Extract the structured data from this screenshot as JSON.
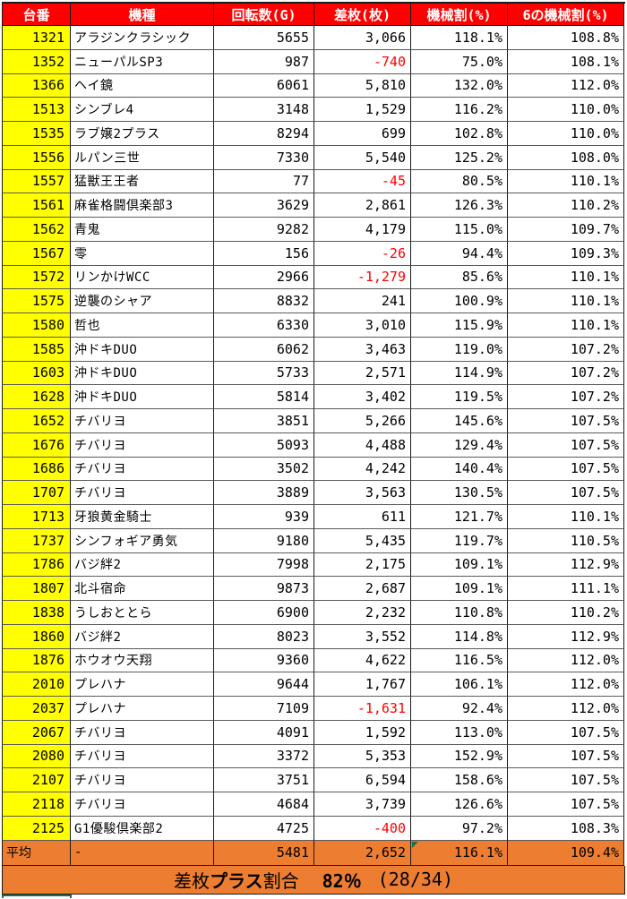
{
  "columns": [
    "台番",
    "機種",
    "回転数(G)",
    "差枚(枚)",
    "機械割(%)",
    "6の機械割(%)"
  ],
  "rows": [
    {
      "no": "1321",
      "name": "アラジンクラシック",
      "spins": "5655",
      "diff": "3,066",
      "rate": "118.1%",
      "rate6": "108.8%"
    },
    {
      "no": "1352",
      "name": "ニューパルSP3",
      "spins": "987",
      "diff": "-740",
      "rate": "75.0%",
      "rate6": "108.1%"
    },
    {
      "no": "1366",
      "name": "ヘイ鏡",
      "spins": "6061",
      "diff": "5,810",
      "rate": "132.0%",
      "rate6": "112.0%"
    },
    {
      "no": "1513",
      "name": "シンブレ4",
      "spins": "3148",
      "diff": "1,529",
      "rate": "116.2%",
      "rate6": "110.0%"
    },
    {
      "no": "1535",
      "name": "ラブ嬢2プラス",
      "spins": "8294",
      "diff": "699",
      "rate": "102.8%",
      "rate6": "110.0%"
    },
    {
      "no": "1556",
      "name": "ルパン三世",
      "spins": "7330",
      "diff": "5,540",
      "rate": "125.2%",
      "rate6": "108.0%"
    },
    {
      "no": "1557",
      "name": "猛獣王王者",
      "spins": "77",
      "diff": "-45",
      "rate": "80.5%",
      "rate6": "110.1%"
    },
    {
      "no": "1561",
      "name": "麻雀格闘倶楽部3",
      "spins": "3629",
      "diff": "2,861",
      "rate": "126.3%",
      "rate6": "110.2%"
    },
    {
      "no": "1562",
      "name": "青鬼",
      "spins": "9282",
      "diff": "4,179",
      "rate": "115.0%",
      "rate6": "109.7%"
    },
    {
      "no": "1567",
      "name": "零",
      "spins": "156",
      "diff": "-26",
      "rate": "94.4%",
      "rate6": "109.3%"
    },
    {
      "no": "1572",
      "name": "リンかけWCC",
      "spins": "2966",
      "diff": "-1,279",
      "rate": "85.6%",
      "rate6": "110.1%"
    },
    {
      "no": "1575",
      "name": "逆襲のシャア",
      "spins": "8832",
      "diff": "241",
      "rate": "100.9%",
      "rate6": "110.1%"
    },
    {
      "no": "1580",
      "name": "哲也",
      "spins": "6330",
      "diff": "3,010",
      "rate": "115.9%",
      "rate6": "110.1%"
    },
    {
      "no": "1585",
      "name": "沖ドキDUO",
      "spins": "6062",
      "diff": "3,463",
      "rate": "119.0%",
      "rate6": "107.2%"
    },
    {
      "no": "1603",
      "name": "沖ドキDUO",
      "spins": "5733",
      "diff": "2,571",
      "rate": "114.9%",
      "rate6": "107.2%"
    },
    {
      "no": "1628",
      "name": "沖ドキDUO",
      "spins": "5814",
      "diff": "3,402",
      "rate": "119.5%",
      "rate6": "107.2%"
    },
    {
      "no": "1652",
      "name": "チバリヨ",
      "spins": "3851",
      "diff": "5,266",
      "rate": "145.6%",
      "rate6": "107.5%"
    },
    {
      "no": "1676",
      "name": "チバリヨ",
      "spins": "5093",
      "diff": "4,488",
      "rate": "129.4%",
      "rate6": "107.5%"
    },
    {
      "no": "1686",
      "name": "チバリヨ",
      "spins": "3502",
      "diff": "4,242",
      "rate": "140.4%",
      "rate6": "107.5%"
    },
    {
      "no": "1707",
      "name": "チバリヨ",
      "spins": "3889",
      "diff": "3,563",
      "rate": "130.5%",
      "rate6": "107.5%"
    },
    {
      "no": "1713",
      "name": "牙狼黄金騎士",
      "spins": "939",
      "diff": "611",
      "rate": "121.7%",
      "rate6": "110.1%"
    },
    {
      "no": "1737",
      "name": "シンフォギア勇気",
      "spins": "9180",
      "diff": "5,435",
      "rate": "119.7%",
      "rate6": "110.5%"
    },
    {
      "no": "1786",
      "name": "バジ絆2",
      "spins": "7998",
      "diff": "2,175",
      "rate": "109.1%",
      "rate6": "112.9%"
    },
    {
      "no": "1807",
      "name": "北斗宿命",
      "spins": "9873",
      "diff": "2,687",
      "rate": "109.1%",
      "rate6": "111.1%"
    },
    {
      "no": "1838",
      "name": "うしおととら",
      "spins": "6900",
      "diff": "2,232",
      "rate": "110.8%",
      "rate6": "110.2%"
    },
    {
      "no": "1860",
      "name": "バジ絆2",
      "spins": "8023",
      "diff": "3,552",
      "rate": "114.8%",
      "rate6": "112.9%"
    },
    {
      "no": "1876",
      "name": "ホウオウ天翔",
      "spins": "9360",
      "diff": "4,622",
      "rate": "116.5%",
      "rate6": "112.0%"
    },
    {
      "no": "2010",
      "name": "プレハナ",
      "spins": "9644",
      "diff": "1,767",
      "rate": "106.1%",
      "rate6": "112.0%"
    },
    {
      "no": "2037",
      "name": "プレハナ",
      "spins": "7109",
      "diff": "-1,631",
      "rate": "92.4%",
      "rate6": "112.0%"
    },
    {
      "no": "2067",
      "name": "チバリヨ",
      "spins": "4091",
      "diff": "1,592",
      "rate": "113.0%",
      "rate6": "107.5%"
    },
    {
      "no": "2080",
      "name": "チバリヨ",
      "spins": "3372",
      "diff": "5,353",
      "rate": "152.9%",
      "rate6": "107.5%"
    },
    {
      "no": "2107",
      "name": "チバリヨ",
      "spins": "3751",
      "diff": "6,594",
      "rate": "158.6%",
      "rate6": "107.5%"
    },
    {
      "no": "2118",
      "name": "チバリヨ",
      "spins": "4684",
      "diff": "3,739",
      "rate": "126.6%",
      "rate6": "107.5%"
    },
    {
      "no": "2125",
      "name": "G1優駿倶楽部2",
      "spins": "4725",
      "diff": "-400",
      "rate": "97.2%",
      "rate6": "108.3%"
    }
  ],
  "average": {
    "label": "平均",
    "name": "-",
    "spins": "5481",
    "diff": "2,652",
    "rate": "116.1%",
    "rate6": "109.4%"
  },
  "footer": {
    "seg1": "差枚",
    "seg2": "プラス",
    "seg3": "割合",
    "value": "82％",
    "fraction": "(28/34)"
  },
  "colors": {
    "header_bg": "#FF0000",
    "header_text": "#FFFFFF",
    "number_column_bg": "#FFFF00",
    "negative_text": "#FF0000",
    "summary_bg": "#ED7D31",
    "indicator_green": "#1E7145"
  }
}
